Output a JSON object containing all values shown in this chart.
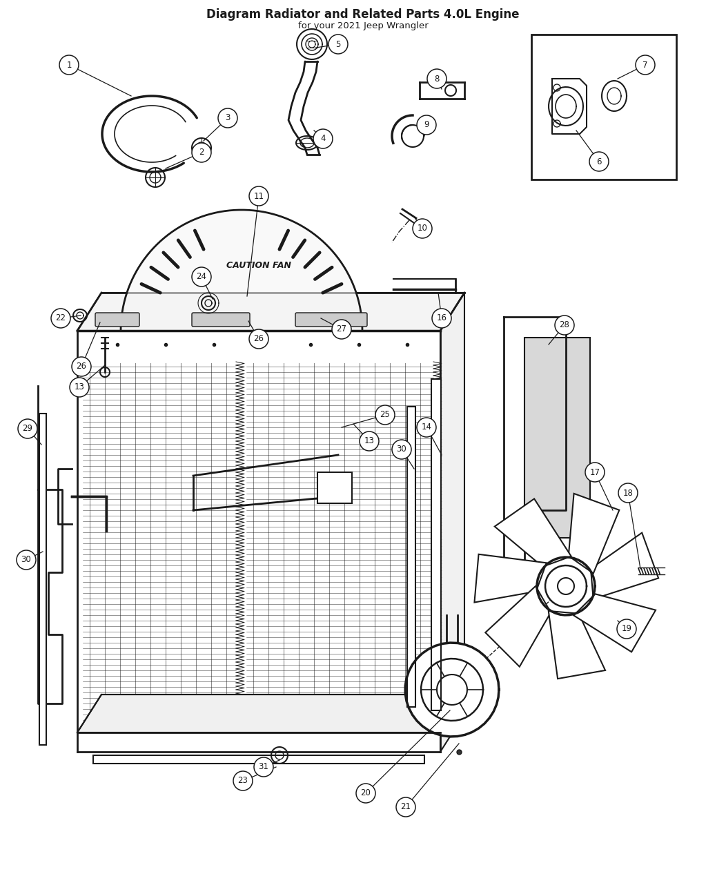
{
  "title": "Diagram Radiator and Related Parts 4.0L Engine",
  "subtitle": "for your 2021 Jeep Wrangler",
  "bg_color": "#ffffff",
  "line_color": "#1a1a1a",
  "fig_width": 10.52,
  "fig_height": 12.79
}
